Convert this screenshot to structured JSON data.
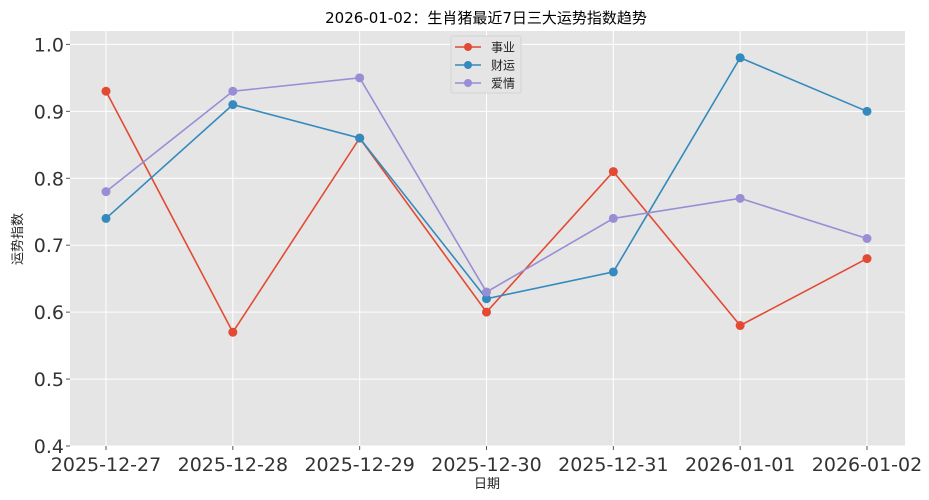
{
  "chart_data": {
    "type": "line",
    "title": "2026-01-02：生肖猪最近7日三大运势指数趋势",
    "xlabel": "日期",
    "ylabel": "运势指数",
    "categories": [
      "2025-12-27",
      "2025-12-28",
      "2025-12-29",
      "2025-12-30",
      "2025-12-31",
      "2026-01-01",
      "2026-01-02"
    ],
    "ylim": [
      0.4,
      1.02
    ],
    "yticks": [
      "0.4",
      "0.5",
      "0.6",
      "0.7",
      "0.8",
      "0.9",
      "1.0"
    ],
    "grid": true,
    "legend_position": "top-center",
    "series": [
      {
        "name": "事业",
        "color": "#E24A33",
        "values": [
          0.93,
          0.57,
          0.86,
          0.6,
          0.81,
          0.58,
          0.68
        ]
      },
      {
        "name": "财运",
        "color": "#348ABD",
        "values": [
          0.74,
          0.91,
          0.86,
          0.62,
          0.66,
          0.98,
          0.9
        ]
      },
      {
        "name": "爱情",
        "color": "#988ED5",
        "values": [
          0.78,
          0.93,
          0.95,
          0.63,
          0.74,
          0.77,
          0.71
        ]
      }
    ]
  }
}
